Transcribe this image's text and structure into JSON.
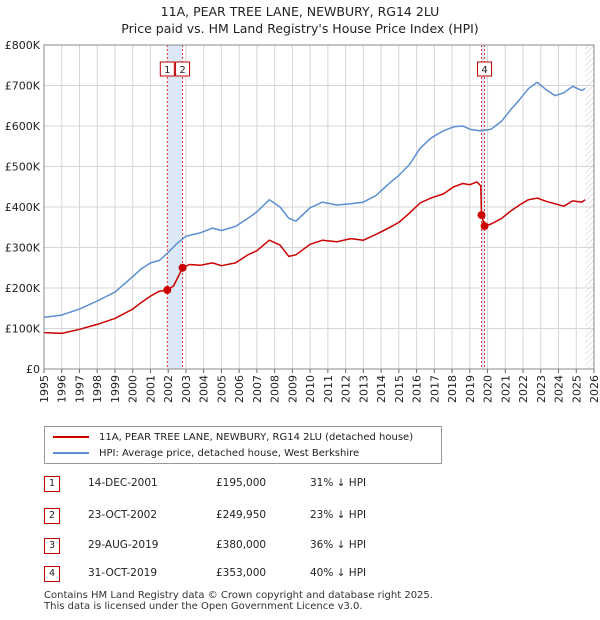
{
  "title_line1": "11A, PEAR TREE LANE, NEWBURY, RG14 2LU",
  "title_line2": "Price paid vs. HM Land Registry's House Price Index (HPI)",
  "chart_data": {
    "type": "line",
    "title": "11A, PEAR TREE LANE, NEWBURY, RG14 2LU — Price paid vs. HM Land Registry's House Price Index (HPI)",
    "xlabel": "",
    "ylabel": "",
    "xlim": [
      1995,
      2026
    ],
    "ylim": [
      0,
      800000
    ],
    "x_ticks": [
      "1995",
      "1996",
      "1997",
      "1998",
      "1999",
      "2000",
      "2001",
      "2002",
      "2003",
      "2004",
      "2005",
      "2006",
      "2007",
      "2008",
      "2009",
      "2010",
      "2011",
      "2012",
      "2013",
      "2014",
      "2015",
      "2016",
      "2017",
      "2018",
      "2019",
      "2020",
      "2021",
      "2022",
      "2023",
      "2024",
      "2025",
      "2026"
    ],
    "y_ticks": [
      {
        "value": 0,
        "label": "£0"
      },
      {
        "value": 100000,
        "label": "£100K"
      },
      {
        "value": 200000,
        "label": "£200K"
      },
      {
        "value": 300000,
        "label": "£300K"
      },
      {
        "value": 400000,
        "label": "£400K"
      },
      {
        "value": 500000,
        "label": "£500K"
      },
      {
        "value": 600000,
        "label": "£600K"
      },
      {
        "value": 700000,
        "label": "£700K"
      },
      {
        "value": 800000,
        "label": "£800K"
      }
    ],
    "grid": true,
    "series": [
      {
        "name": "11A, PEAR TREE LANE, NEWBURY, RG14 2LU (detached house)",
        "color": "#cc0000",
        "points": [
          [
            1995.0,
            90000
          ],
          [
            1996.0,
            88000
          ],
          [
            1997.0,
            98000
          ],
          [
            1998.0,
            110000
          ],
          [
            1999.0,
            125000
          ],
          [
            2000.0,
            148000
          ],
          [
            2000.5,
            165000
          ],
          [
            2001.0,
            180000
          ],
          [
            2001.5,
            192000
          ],
          [
            2001.95,
            195000
          ],
          [
            2002.3,
            205000
          ],
          [
            2002.81,
            249950
          ],
          [
            2003.2,
            258000
          ],
          [
            2003.8,
            256000
          ],
          [
            2004.5,
            262000
          ],
          [
            2005.0,
            255000
          ],
          [
            2005.8,
            262000
          ],
          [
            2006.5,
            282000
          ],
          [
            2007.0,
            292000
          ],
          [
            2007.7,
            318000
          ],
          [
            2008.3,
            306000
          ],
          [
            2008.8,
            278000
          ],
          [
            2009.2,
            282000
          ],
          [
            2010.0,
            308000
          ],
          [
            2010.7,
            318000
          ],
          [
            2011.5,
            314000
          ],
          [
            2012.3,
            322000
          ],
          [
            2013.0,
            318000
          ],
          [
            2013.7,
            332000
          ],
          [
            2014.5,
            350000
          ],
          [
            2015.0,
            362000
          ],
          [
            2015.6,
            385000
          ],
          [
            2016.2,
            410000
          ],
          [
            2016.8,
            422000
          ],
          [
            2017.5,
            432000
          ],
          [
            2018.1,
            450000
          ],
          [
            2018.6,
            458000
          ],
          [
            2019.0,
            455000
          ],
          [
            2019.4,
            462000
          ],
          [
            2019.62,
            452000
          ],
          [
            2019.66,
            380000
          ],
          [
            2019.83,
            353000
          ],
          [
            2020.2,
            358000
          ],
          [
            2020.8,
            372000
          ],
          [
            2021.3,
            390000
          ],
          [
            2021.8,
            405000
          ],
          [
            2022.3,
            418000
          ],
          [
            2022.8,
            422000
          ],
          [
            2023.3,
            414000
          ],
          [
            2023.8,
            408000
          ],
          [
            2024.3,
            402000
          ],
          [
            2024.8,
            415000
          ],
          [
            2025.3,
            412000
          ],
          [
            2025.5,
            418000
          ]
        ]
      },
      {
        "name": "HPI: Average price, detached house, West Berkshire",
        "color": "#5b8fd0",
        "points": [
          [
            1995.0,
            128000
          ],
          [
            1996.0,
            133000
          ],
          [
            1997.0,
            148000
          ],
          [
            1998.0,
            168000
          ],
          [
            1999.0,
            190000
          ],
          [
            2000.0,
            228000
          ],
          [
            2000.5,
            248000
          ],
          [
            2001.0,
            262000
          ],
          [
            2001.5,
            268000
          ],
          [
            2002.0,
            288000
          ],
          [
            2002.5,
            310000
          ],
          [
            2003.0,
            328000
          ],
          [
            2003.8,
            336000
          ],
          [
            2004.5,
            348000
          ],
          [
            2005.0,
            342000
          ],
          [
            2005.8,
            352000
          ],
          [
            2006.5,
            372000
          ],
          [
            2007.0,
            388000
          ],
          [
            2007.7,
            418000
          ],
          [
            2008.3,
            400000
          ],
          [
            2008.8,
            372000
          ],
          [
            2009.2,
            365000
          ],
          [
            2010.0,
            398000
          ],
          [
            2010.7,
            412000
          ],
          [
            2011.5,
            405000
          ],
          [
            2012.3,
            408000
          ],
          [
            2013.0,
            412000
          ],
          [
            2013.7,
            428000
          ],
          [
            2014.5,
            460000
          ],
          [
            2015.0,
            478000
          ],
          [
            2015.6,
            505000
          ],
          [
            2016.2,
            545000
          ],
          [
            2016.8,
            570000
          ],
          [
            2017.5,
            588000
          ],
          [
            2018.1,
            598000
          ],
          [
            2018.6,
            600000
          ],
          [
            2019.0,
            592000
          ],
          [
            2019.6,
            588000
          ],
          [
            2020.2,
            592000
          ],
          [
            2020.8,
            612000
          ],
          [
            2021.3,
            640000
          ],
          [
            2021.8,
            665000
          ],
          [
            2022.3,
            692000
          ],
          [
            2022.8,
            708000
          ],
          [
            2023.3,
            690000
          ],
          [
            2023.8,
            675000
          ],
          [
            2024.3,
            682000
          ],
          [
            2024.8,
            698000
          ],
          [
            2025.3,
            688000
          ],
          [
            2025.5,
            692000
          ]
        ]
      }
    ],
    "sales": [
      {
        "id": "1",
        "x": 2001.95,
        "price": 195000,
        "date": "14-DEC-2001",
        "price_label": "£195,000",
        "hpi": "31% ↓ HPI",
        "marker": true,
        "callout": true
      },
      {
        "id": "2",
        "x": 2002.81,
        "price": 249950,
        "date": "23-OCT-2002",
        "price_label": "£249,950",
        "hpi": "23% ↓ HPI",
        "marker": true,
        "callout": true
      },
      {
        "id": "3",
        "x": 2019.66,
        "price": 380000,
        "date": "29-AUG-2019",
        "price_label": "£380,000",
        "hpi": "36% ↓ HPI",
        "marker": true,
        "callout": false
      },
      {
        "id": "4",
        "x": 2019.83,
        "price": 353000,
        "date": "31-OCT-2019",
        "price_label": "£353,000",
        "hpi": "40% ↓ HPI",
        "marker": true,
        "callout": true
      }
    ],
    "shaded_spans": [
      [
        2001.95,
        2002.81
      ],
      [
        2019.66,
        2019.83
      ]
    ],
    "hatched_from": 2025.5
  },
  "legend": {
    "property_label": "11A, PEAR TREE LANE, NEWBURY, RG14 2LU (detached house)",
    "hpi_label": "HPI: Average price, detached house, West Berkshire"
  },
  "colors": {
    "property": "#cc0000",
    "hpi": "#5b8fd0",
    "shade": "#dde8f6",
    "grid": "#d6d6d6"
  },
  "footer": {
    "line1": "Contains HM Land Registry data © Crown copyright and database right 2025.",
    "line2": "This data is licensed under the Open Government Licence v3.0."
  }
}
